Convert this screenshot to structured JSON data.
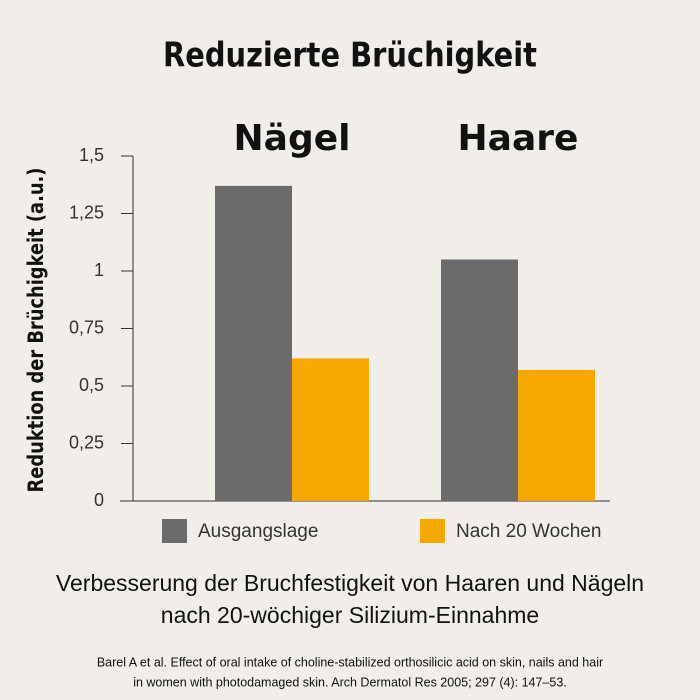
{
  "chart_data": {
    "type": "bar",
    "title": "Reduzierte Brüchigkeit",
    "y_label": "Reduktion der Brüchigkeit (a.u.)",
    "categories": [
      "Nägel",
      "Haare"
    ],
    "series": [
      {
        "name": "Ausgangslage",
        "color": "#6b6b6b",
        "values": [
          1.37,
          1.05
        ]
      },
      {
        "name": "Nach 20 Wochen",
        "color": "#f5a800",
        "values": [
          0.62,
          0.57
        ]
      }
    ],
    "ylim": [
      0,
      1.5
    ],
    "yticks": [
      0,
      {
        "value": 0.25,
        "label": "0,25"
      },
      {
        "value": 0.5,
        "label": "0,5"
      },
      {
        "value": 0.75,
        "label": "0,75"
      },
      1,
      {
        "value": 1.25,
        "label": "1,25"
      },
      {
        "value": 1.5,
        "label": "1,5"
      }
    ],
    "caption": [
      "Verbesserung der Bruchfestigkeit von Haaren und Nägeln",
      "nach 20-wöchiger Silizium-Einnahme"
    ],
    "source": [
      "Barel A et al. Effect of oral intake of choline-stabilized orthosilicic acid on skin, nails and hair",
      "in women with photodamaged skin. Arch Dermatol Res 2005; 297 (4): 147–53."
    ]
  }
}
